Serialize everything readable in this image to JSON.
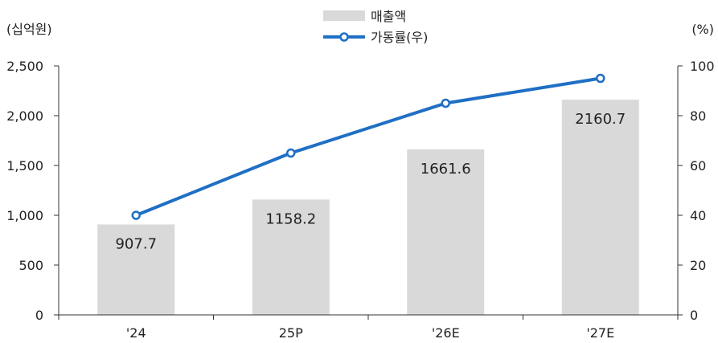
{
  "chart_data": {
    "type": "bar",
    "categories": [
      "'24",
      "25P",
      "'26E",
      "'27E"
    ],
    "series": [
      {
        "name": "매출액",
        "type": "bar",
        "axis": "left",
        "values": [
          907.7,
          1158.2,
          1661.6,
          2160.7
        ],
        "labels": [
          "907.7",
          "1158.2",
          "1661.6",
          "2160.7"
        ]
      },
      {
        "name": "가동률(우)",
        "type": "line",
        "axis": "right",
        "values": [
          40,
          65,
          85,
          95
        ]
      }
    ],
    "y_left": {
      "unit": "(십억원)",
      "lim": [
        0,
        2500
      ],
      "ticks": [
        "0",
        "500",
        "1,000",
        "1,500",
        "2,000",
        "2,500"
      ]
    },
    "y_right": {
      "unit": "(%)",
      "lim": [
        0,
        100
      ],
      "ticks": [
        "0",
        "20",
        "40",
        "60",
        "80",
        "100"
      ]
    },
    "legend_position": "top-center",
    "grid": false,
    "colors": {
      "bar": "#d9d9d9",
      "line": "#1f6fc5",
      "axis": "#333333"
    }
  }
}
